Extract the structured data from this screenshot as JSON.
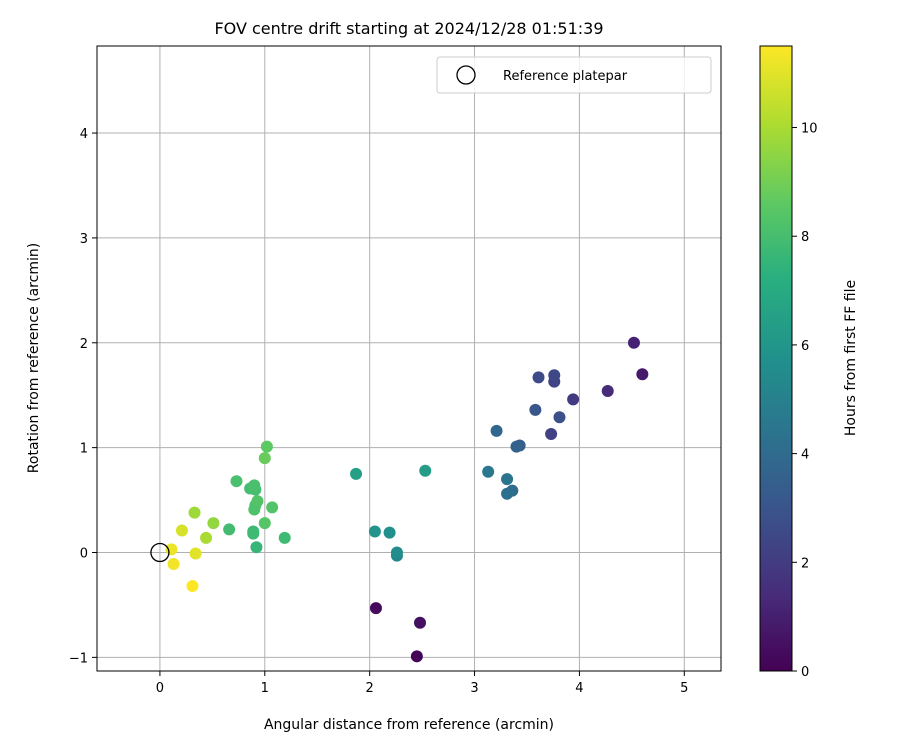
{
  "chart_data": {
    "type": "scatter",
    "title": "FOV centre drift starting at 2024/12/28 01:51:39",
    "xlabel": "Angular distance from reference (arcmin)",
    "ylabel": "Rotation from reference (arcmin)",
    "xlim": [
      -0.6,
      5.35
    ],
    "ylim": [
      -1.13,
      4.83
    ],
    "x_ticks": [
      0,
      1,
      2,
      3,
      4,
      5
    ],
    "y_ticks": [
      -1,
      0,
      1,
      2,
      3,
      4
    ],
    "grid": true,
    "legend": {
      "position": "top-right",
      "entries": [
        "Reference platepar"
      ]
    },
    "reference_point": {
      "x": 0,
      "y": 0,
      "label": "Reference platepar"
    },
    "colorbar": {
      "label": "Hours from first FF file",
      "colormap": "viridis",
      "range": [
        0,
        11.5
      ],
      "ticks": [
        0,
        2,
        4,
        6,
        8,
        10
      ]
    },
    "points": [
      {
        "x": 2.45,
        "y": -0.99,
        "c": 0.1
      },
      {
        "x": 2.06,
        "y": -0.53,
        "c": 0.3
      },
      {
        "x": 2.48,
        "y": -0.67,
        "c": 0.5
      },
      {
        "x": 4.6,
        "y": 1.7,
        "c": 0.8
      },
      {
        "x": 4.52,
        "y": 2.0,
        "c": 1.1
      },
      {
        "x": 4.27,
        "y": 1.54,
        "c": 1.4
      },
      {
        "x": 3.94,
        "y": 1.46,
        "c": 2.0
      },
      {
        "x": 3.73,
        "y": 1.13,
        "c": 2.2
      },
      {
        "x": 3.76,
        "y": 1.63,
        "c": 2.3
      },
      {
        "x": 3.76,
        "y": 1.69,
        "c": 2.5
      },
      {
        "x": 3.61,
        "y": 1.67,
        "c": 2.6
      },
      {
        "x": 3.81,
        "y": 1.29,
        "c": 2.8
      },
      {
        "x": 3.58,
        "y": 1.36,
        "c": 3.1
      },
      {
        "x": 3.43,
        "y": 1.02,
        "c": 3.4
      },
      {
        "x": 3.4,
        "y": 1.01,
        "c": 3.6
      },
      {
        "x": 3.21,
        "y": 1.16,
        "c": 3.8
      },
      {
        "x": 3.36,
        "y": 0.59,
        "c": 4.0
      },
      {
        "x": 3.31,
        "y": 0.56,
        "c": 4.2
      },
      {
        "x": 3.31,
        "y": 0.7,
        "c": 4.4
      },
      {
        "x": 3.13,
        "y": 0.77,
        "c": 4.6
      },
      {
        "x": 2.26,
        "y": -0.03,
        "c": 5.3
      },
      {
        "x": 2.26,
        "y": 0.0,
        "c": 5.5
      },
      {
        "x": 2.19,
        "y": 0.19,
        "c": 5.7
      },
      {
        "x": 2.05,
        "y": 0.2,
        "c": 5.9
      },
      {
        "x": 2.53,
        "y": 0.78,
        "c": 6.3
      },
      {
        "x": 1.87,
        "y": 0.75,
        "c": 6.5
      },
      {
        "x": 0.92,
        "y": 0.05,
        "c": 7.6
      },
      {
        "x": 0.89,
        "y": 0.2,
        "c": 7.7
      },
      {
        "x": 1.19,
        "y": 0.14,
        "c": 7.8
      },
      {
        "x": 0.89,
        "y": 0.18,
        "c": 7.8
      },
      {
        "x": 0.66,
        "y": 0.22,
        "c": 7.9
      },
      {
        "x": 0.91,
        "y": 0.6,
        "c": 8.0
      },
      {
        "x": 0.86,
        "y": 0.61,
        "c": 8.0
      },
      {
        "x": 0.9,
        "y": 0.64,
        "c": 8.1
      },
      {
        "x": 0.73,
        "y": 0.68,
        "c": 8.1
      },
      {
        "x": 0.9,
        "y": 0.41,
        "c": 8.2
      },
      {
        "x": 0.91,
        "y": 0.45,
        "c": 8.2
      },
      {
        "x": 0.93,
        "y": 0.49,
        "c": 8.3
      },
      {
        "x": 1.07,
        "y": 0.43,
        "c": 8.3
      },
      {
        "x": 1.0,
        "y": 0.28,
        "c": 8.4
      },
      {
        "x": 1.02,
        "y": 1.01,
        "c": 8.6
      },
      {
        "x": 1.0,
        "y": 0.9,
        "c": 8.8
      },
      {
        "x": 0.51,
        "y": 0.28,
        "c": 9.6
      },
      {
        "x": 0.33,
        "y": 0.38,
        "c": 9.8
      },
      {
        "x": 0.44,
        "y": 0.14,
        "c": 10.0
      },
      {
        "x": 0.21,
        "y": 0.21,
        "c": 10.8
      },
      {
        "x": 0.34,
        "y": -0.01,
        "c": 11.0
      },
      {
        "x": 0.11,
        "y": 0.03,
        "c": 11.2
      },
      {
        "x": 0.13,
        "y": -0.11,
        "c": 11.3
      },
      {
        "x": 0.31,
        "y": -0.32,
        "c": 11.5
      }
    ]
  }
}
